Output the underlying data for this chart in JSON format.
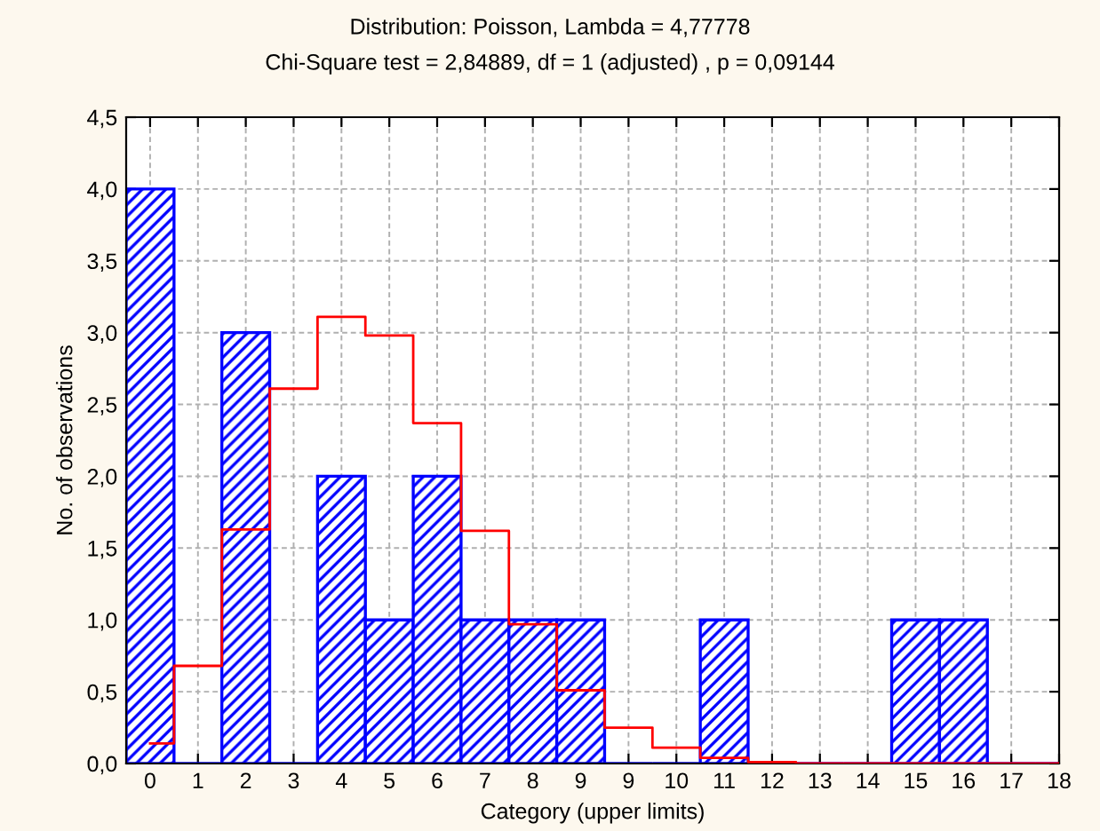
{
  "chart_data": {
    "type": "bar",
    "title": "Distribution: Poisson, Lambda = 4,77778",
    "subtitle": "Chi-Square test = 2,84889, df = 1 (adjusted) , p = 0,09144",
    "xlabel": "Category (upper limits)",
    "ylabel": "No. of observations",
    "categories": [
      "0",
      "1",
      "2",
      "3",
      "4",
      "5",
      "6",
      "7",
      "8",
      "9",
      "9",
      "10",
      "11",
      "12",
      "13",
      "14",
      "15",
      "16",
      "17",
      "18"
    ],
    "series": [
      {
        "color": "#0000ff",
        "values": [
          4,
          0,
          3,
          0,
          2,
          1,
          2,
          1,
          1,
          1,
          0,
          0,
          1,
          0,
          0,
          0,
          1,
          1,
          0,
          0
        ]
      },
      {
        "type": "step",
        "color": "#ff0000",
        "values": [
          0.14,
          0.68,
          1.63,
          2.61,
          3.11,
          2.98,
          2.37,
          1.62,
          0.97,
          0.51,
          0.25,
          0.11,
          0.04,
          0.01,
          0,
          0,
          0,
          0,
          0,
          0
        ]
      }
    ],
    "ylim": [
      0,
      4.5
    ],
    "yticks": [
      {
        "value": 0,
        "label": "0,0"
      },
      {
        "value": 0.5,
        "label": "0,5"
      },
      {
        "value": 1,
        "label": "1,0"
      },
      {
        "value": 1.5,
        "label": "1,5"
      },
      {
        "value": 2,
        "label": "2,0"
      },
      {
        "value": 2.5,
        "label": "2,5"
      },
      {
        "value": 3,
        "label": "3,0"
      },
      {
        "value": 3.5,
        "label": "3,5"
      },
      {
        "value": 4,
        "label": "4,0"
      },
      {
        "value": 4.5,
        "label": "4,5"
      }
    ],
    "grid": true
  }
}
